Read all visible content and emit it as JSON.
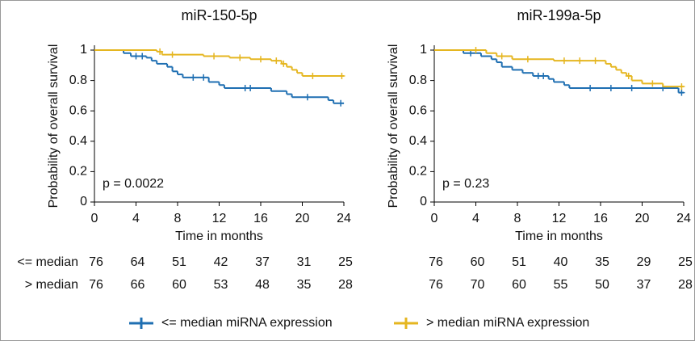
{
  "chart_data": [
    {
      "type": "step",
      "title": "miR-150-5p",
      "xlabel": "Time in months",
      "ylabel": "Probability of overall survival",
      "annotation": "p = 0.0022",
      "xlim": [
        0,
        24
      ],
      "xticks": [
        0,
        4,
        8,
        12,
        16,
        20,
        24
      ],
      "ylim": [
        0,
        1
      ],
      "yticks": [
        0,
        0.2,
        0.4,
        0.6,
        0.8,
        1
      ],
      "series": [
        {
          "name": "<= median miRNA expression",
          "color": "#1f6fb2",
          "x": [
            0,
            2.8,
            3.5,
            5,
            5.5,
            6,
            7,
            7.5,
            8,
            8.5,
            11,
            12,
            12.5,
            17,
            18.5,
            19,
            22.5,
            23
          ],
          "values": [
            1,
            0.98,
            0.96,
            0.95,
            0.93,
            0.91,
            0.89,
            0.86,
            0.84,
            0.82,
            0.79,
            0.77,
            0.75,
            0.73,
            0.71,
            0.69,
            0.67,
            0.65
          ],
          "censor_x": [
            4,
            4.6,
            9.5,
            10.5,
            14.5,
            15,
            20.5,
            23.7
          ],
          "censor_y": [
            0.96,
            0.96,
            0.82,
            0.82,
            0.75,
            0.75,
            0.69,
            0.65
          ]
        },
        {
          "name": "> median miRNA expression",
          "color": "#e5b620",
          "x": [
            0,
            6,
            6.5,
            10.5,
            13,
            15,
            17,
            18,
            18.5,
            19,
            19.5,
            20
          ],
          "values": [
            1,
            0.99,
            0.97,
            0.96,
            0.95,
            0.94,
            0.93,
            0.91,
            0.89,
            0.87,
            0.85,
            0.83
          ],
          "censor_x": [
            6.3,
            7.5,
            11.5,
            14,
            16,
            17.5,
            18.2,
            21,
            23.8
          ],
          "censor_y": [
            0.99,
            0.97,
            0.96,
            0.95,
            0.94,
            0.93,
            0.91,
            0.83,
            0.83
          ]
        }
      ],
      "risk_table": {
        "rows": [
          {
            "label": "<= median",
            "values": [
              76,
              64,
              51,
              42,
              37,
              31,
              25
            ]
          },
          {
            "label": "> median",
            "values": [
              76,
              66,
              60,
              53,
              48,
              35,
              28
            ]
          }
        ]
      }
    },
    {
      "type": "step",
      "title": "miR-199a-5p",
      "xlabel": "Time in months",
      "ylabel": "Probability of overall survival",
      "annotation": "p = 0.23",
      "xlim": [
        0,
        24
      ],
      "xticks": [
        0,
        4,
        8,
        12,
        16,
        20,
        24
      ],
      "ylim": [
        0,
        1
      ],
      "yticks": [
        0,
        0.2,
        0.4,
        0.6,
        0.8,
        1
      ],
      "series": [
        {
          "name": "<= median miRNA expression",
          "color": "#1f6fb2",
          "x": [
            0,
            2.8,
            4.5,
            5.5,
            6,
            6.5,
            7.5,
            8.5,
            9.5,
            11,
            11.5,
            12.5,
            13,
            23.5
          ],
          "values": [
            1,
            0.98,
            0.96,
            0.94,
            0.92,
            0.89,
            0.87,
            0.85,
            0.83,
            0.81,
            0.79,
            0.77,
            0.75,
            0.72
          ],
          "censor_x": [
            3.5,
            10,
            10.5,
            15,
            17,
            19,
            22,
            23.8
          ],
          "censor_y": [
            0.98,
            0.83,
            0.83,
            0.75,
            0.75,
            0.75,
            0.75,
            0.72
          ]
        },
        {
          "name": "> median miRNA expression",
          "color": "#e5b620",
          "x": [
            0,
            5,
            6,
            7.5,
            11.5,
            16.5,
            17,
            17.5,
            18,
            18.5,
            19,
            20,
            22
          ],
          "values": [
            1,
            0.98,
            0.96,
            0.94,
            0.93,
            0.91,
            0.89,
            0.87,
            0.85,
            0.83,
            0.8,
            0.78,
            0.76
          ],
          "censor_x": [
            4,
            6.5,
            9,
            12.5,
            14,
            15.5,
            18.7,
            21,
            23.8
          ],
          "censor_y": [
            1,
            0.96,
            0.94,
            0.93,
            0.93,
            0.93,
            0.83,
            0.78,
            0.76
          ]
        }
      ],
      "risk_table": {
        "rows": [
          {
            "values": [
              76,
              60,
              51,
              40,
              35,
              29,
              25
            ]
          },
          {
            "values": [
              76,
              70,
              60,
              55,
              50,
              37,
              28
            ]
          }
        ]
      }
    }
  ]
}
